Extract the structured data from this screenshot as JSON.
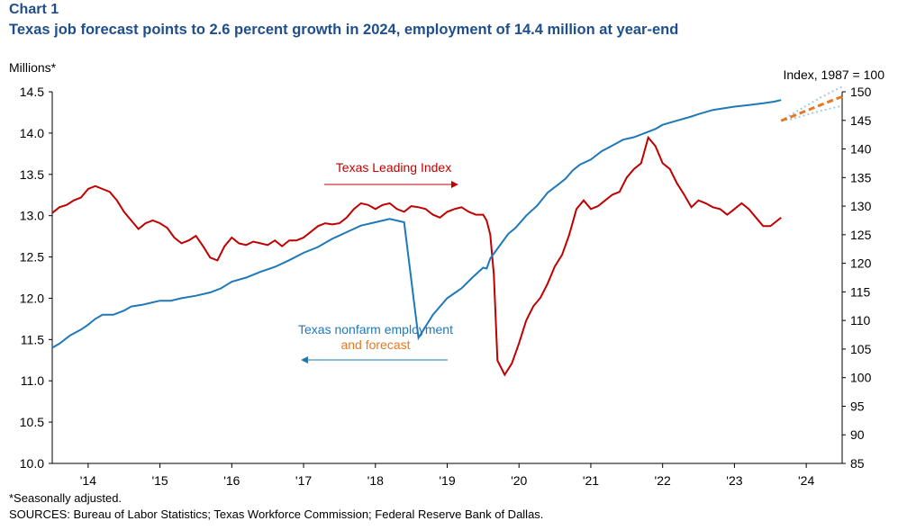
{
  "header": {
    "label": "Chart 1",
    "title": "Texas job forecast points to 2.6 percent growth in 2024, employment of 14.4 million at year-end"
  },
  "footer": {
    "note": "*Seasonally adjusted.",
    "sources": "SOURCES: Bureau of Labor Statistics; Texas Workforce Commission; Federal Reserve Bank of Dallas."
  },
  "chart_data": {
    "type": "line",
    "left_axis": {
      "label": "Millions*",
      "min": 10.0,
      "max": 14.5,
      "step": 0.5,
      "ticks": [
        "10.0",
        "10.5",
        "11.0",
        "11.5",
        "12.0",
        "12.5",
        "13.0",
        "13.5",
        "14.0",
        "14.5"
      ]
    },
    "right_axis": {
      "label": "Index,  1987 = 100",
      "min": 85,
      "max": 150,
      "step": 5,
      "ticks": [
        "85",
        "90",
        "95",
        "100",
        "105",
        "110",
        "115",
        "120",
        "125",
        "130",
        "135",
        "140",
        "145",
        "150"
      ]
    },
    "x_axis": {
      "start": 2013.5,
      "end": 2024.5,
      "tick_labels": [
        "'14",
        "'15",
        "'16",
        "'17",
        "'18",
        "'19",
        "'20",
        "'21",
        "'22",
        "'23",
        "'24"
      ]
    },
    "annotations": {
      "leading_index": "Texas  Leading Index",
      "employment_line1": "Texas nonfarm  employment",
      "employment_line2": "and forecast"
    },
    "colors": {
      "employment": "#1f78b8",
      "forecast": "#e87722",
      "forecast_band": "#a6c8e8",
      "leading_index": "#c00000",
      "text_blue": "#1f78b8",
      "text_orange": "#e87722",
      "text_red": "#c00000"
    },
    "series": [
      {
        "name": "Texas nonfarm employment",
        "axis": "left",
        "x": [
          2013.5,
          2013.6,
          2013.75,
          2013.9,
          2014.0,
          2014.1,
          2014.2,
          2014.35,
          2014.5,
          2014.6,
          2014.75,
          2014.9,
          2015.0,
          2015.15,
          2015.3,
          2015.5,
          2015.7,
          2015.85,
          2016.0,
          2016.2,
          2016.4,
          2016.6,
          2016.8,
          2017.0,
          2017.2,
          2017.4,
          2017.6,
          2017.8,
          2018.0,
          2018.2,
          2018.4,
          2018.6,
          2018.8,
          2019.0,
          2019.2,
          2019.35,
          2019.5,
          2019.55,
          2019.6,
          2019.7,
          2019.85,
          2019.95,
          2020.1,
          2020.25,
          2020.4,
          2020.55,
          2020.65,
          2020.75,
          2020.85,
          2021.0,
          2021.15,
          2021.3,
          2021.45,
          2021.6,
          2021.75,
          2021.9,
          2022.0,
          2022.2,
          2022.4,
          2022.5,
          2022.7,
          2022.85,
          2023.0,
          2023.2,
          2023.4,
          2023.55,
          2023.65
        ],
        "values": [
          11.4,
          11.45,
          11.55,
          11.62,
          11.68,
          11.75,
          11.8,
          11.8,
          11.85,
          11.9,
          11.92,
          11.95,
          11.97,
          11.97,
          12.0,
          12.03,
          12.07,
          12.12,
          12.2,
          12.25,
          12.32,
          12.38,
          12.46,
          12.55,
          12.62,
          12.72,
          12.8,
          12.88,
          12.92,
          12.96,
          12.92,
          11.52,
          11.8,
          12.0,
          12.12,
          12.25,
          12.37,
          12.36,
          12.48,
          12.6,
          12.78,
          12.85,
          13.0,
          13.12,
          13.28,
          13.38,
          13.45,
          13.55,
          13.62,
          13.68,
          13.78,
          13.85,
          13.92,
          13.95,
          14.0,
          14.05,
          14.1,
          14.15,
          14.2,
          14.23,
          14.28,
          14.3,
          14.32,
          14.34,
          14.36,
          14.38,
          14.4
        ],
        "x_note": "values listed in chronological order"
      },
      {
        "name": "Employment forecast",
        "axis": "left",
        "x": [
          2023.65,
          2023.8,
          2024.0,
          2024.2,
          2024.4,
          2024.5
        ],
        "values": [
          14.15,
          14.2,
          14.27,
          14.34,
          14.41,
          14.44
        ],
        "band_upper": [
          14.15,
          14.23,
          14.33,
          14.43,
          14.52,
          14.56
        ],
        "band_lower": [
          14.15,
          14.17,
          14.22,
          14.27,
          14.31,
          14.33
        ]
      },
      {
        "name": "Texas Leading Index",
        "axis": "right",
        "x": [
          2013.5,
          2013.6,
          2013.7,
          2013.8,
          2013.9,
          2014.0,
          2014.1,
          2014.2,
          2014.3,
          2014.4,
          2014.5,
          2014.6,
          2014.7,
          2014.8,
          2014.9,
          2015.0,
          2015.1,
          2015.2,
          2015.3,
          2015.4,
          2015.5,
          2015.6,
          2015.7,
          2015.8,
          2015.9,
          2016.0,
          2016.1,
          2016.2,
          2016.3,
          2016.4,
          2016.5,
          2016.6,
          2016.7,
          2016.8,
          2016.9,
          2017.0,
          2017.1,
          2017.2,
          2017.3,
          2017.4,
          2017.5,
          2017.6,
          2017.7,
          2017.8,
          2017.9,
          2018.0,
          2018.1,
          2018.2,
          2018.3,
          2018.4,
          2018.5,
          2018.6,
          2018.7,
          2018.8,
          2018.9,
          2019.0,
          2019.1,
          2019.2,
          2019.3,
          2019.4,
          2019.5,
          2019.55,
          2019.6,
          2019.65,
          2019.7,
          2019.8,
          2019.9,
          2020.0,
          2020.1,
          2020.2,
          2020.3,
          2020.4,
          2020.5,
          2020.6,
          2020.7,
          2020.8,
          2020.9,
          2021.0,
          2021.1,
          2021.2,
          2021.3,
          2021.4,
          2021.5,
          2021.6,
          2021.7,
          2021.8,
          2021.9,
          2022.0,
          2022.1,
          2022.2,
          2022.3,
          2022.4,
          2022.5,
          2022.6,
          2022.7,
          2022.8,
          2022.9,
          2023.0,
          2023.1,
          2023.2,
          2023.3,
          2023.4,
          2023.5,
          2023.6,
          2023.65
        ],
        "values": [
          128.8,
          129.8,
          130.2,
          131.0,
          131.5,
          133.0,
          133.5,
          133.0,
          132.5,
          131.0,
          129.0,
          127.5,
          126.0,
          127.0,
          127.5,
          127.0,
          126.2,
          124.5,
          123.5,
          124.0,
          124.8,
          123.0,
          121.0,
          120.5,
          123.0,
          124.5,
          123.5,
          123.2,
          123.8,
          123.5,
          123.2,
          124.0,
          123.0,
          124.0,
          124.0,
          124.5,
          125.5,
          126.5,
          127.0,
          126.8,
          127.0,
          128.0,
          129.5,
          130.5,
          130.2,
          129.5,
          130.2,
          130.5,
          129.5,
          129.0,
          130.0,
          129.8,
          129.5,
          128.5,
          128.0,
          129.0,
          129.5,
          129.8,
          129.0,
          128.5,
          128.5,
          127.5,
          125.0,
          118.0,
          103.0,
          100.5,
          102.5,
          106.0,
          110.0,
          112.5,
          114.0,
          116.5,
          119.5,
          121.5,
          125.0,
          129.5,
          131.0,
          129.5,
          130.0,
          131.0,
          132.0,
          132.5,
          135.0,
          136.5,
          137.5,
          142.0,
          140.5,
          137.5,
          136.5,
          134.0,
          132.0,
          129.8,
          131.0,
          130.5,
          129.8,
          129.5,
          128.5,
          129.5,
          130.5,
          129.5,
          128.0,
          126.5,
          126.5,
          127.5,
          128.0
        ]
      }
    ]
  }
}
